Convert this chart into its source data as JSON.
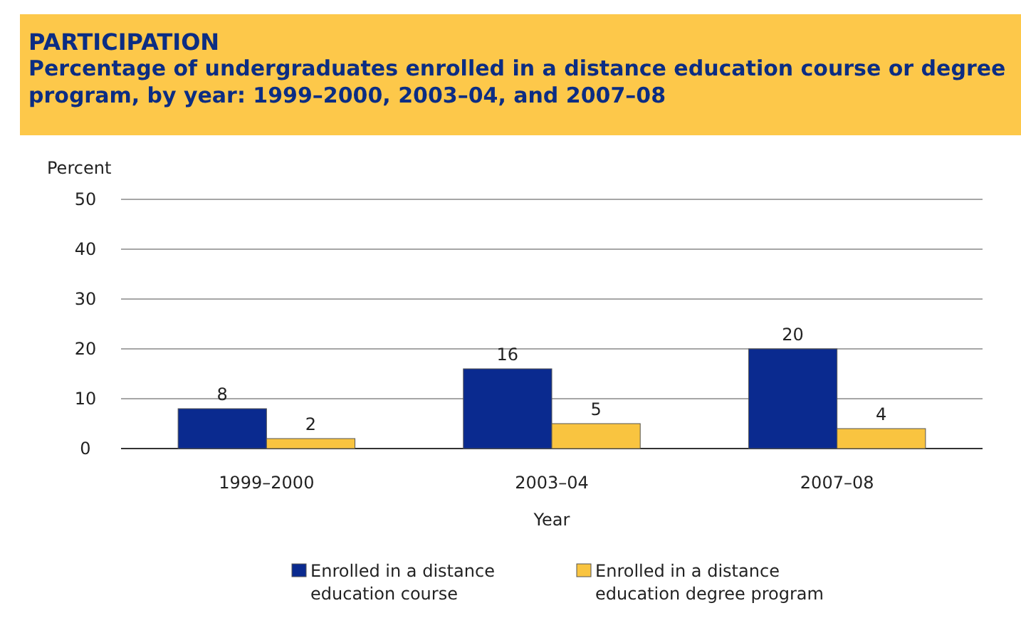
{
  "chart_data": {
    "type": "bar",
    "title": "PARTICIPATION",
    "subtitle": "Percentage of undergraduates enrolled in a distance education course or degree program, by year: 1999–2000, 2003–04, and 2007–08",
    "ylabel": "Percent",
    "xlabel": "Year",
    "categories": [
      "1999–2000",
      "2003–04",
      "2007–08"
    ],
    "series": [
      {
        "name": "Enrolled in a distance education course",
        "color": "#0a2a8f",
        "values": [
          8,
          16,
          20
        ]
      },
      {
        "name": "Enrolled in a distance education degree program",
        "color": "#f9c440",
        "values": [
          2,
          5,
          4
        ]
      }
    ],
    "ylim": [
      0,
      50
    ],
    "yticks": [
      0,
      10,
      20,
      30,
      40,
      50
    ],
    "grid": "y",
    "legend": "bottom",
    "data_labels": true
  }
}
